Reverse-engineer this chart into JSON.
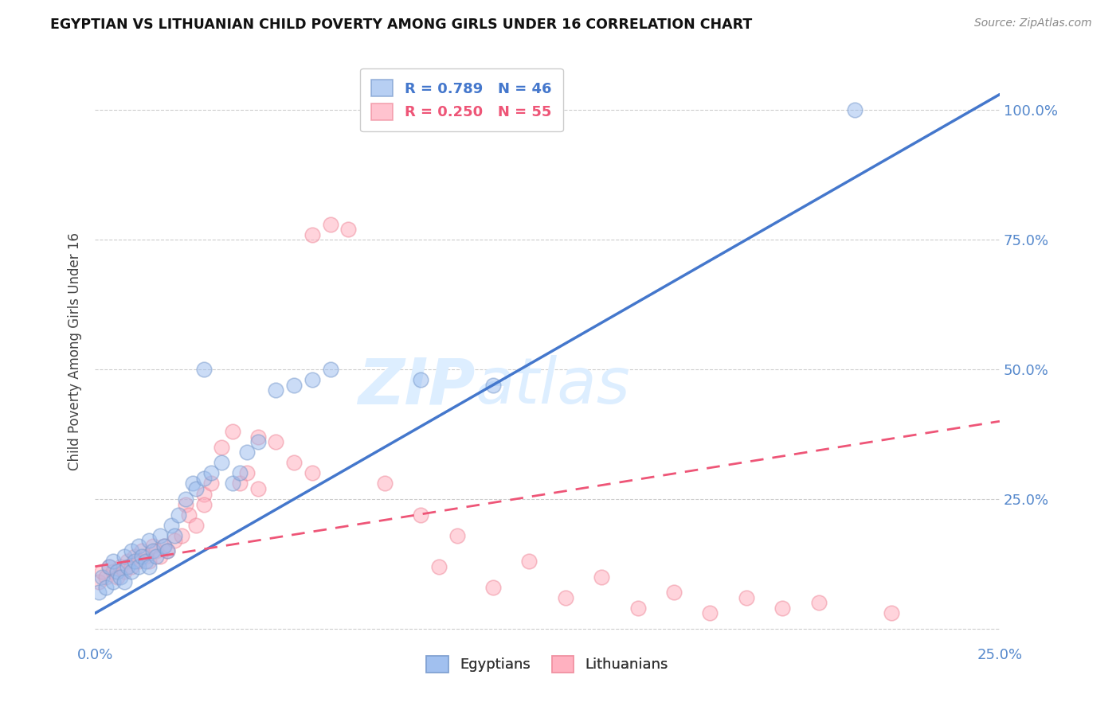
{
  "title": "EGYPTIAN VS LITHUANIAN CHILD POVERTY AMONG GIRLS UNDER 16 CORRELATION CHART",
  "source": "Source: ZipAtlas.com",
  "ylabel": "Child Poverty Among Girls Under 16",
  "xlim": [
    0.0,
    0.25
  ],
  "ylim": [
    -0.03,
    1.1
  ],
  "blue_R": 0.789,
  "blue_N": 46,
  "pink_R": 0.25,
  "pink_N": 55,
  "blue_color": "#99BBEE",
  "pink_color": "#FFAABB",
  "blue_edge_color": "#7799CC",
  "pink_edge_color": "#EE8899",
  "blue_line_color": "#4477CC",
  "pink_line_color": "#EE5577",
  "tick_color": "#5588CC",
  "grid_color": "#CCCCCC",
  "bg_color": "#FFFFFF",
  "watermark_color": "#DDEEFF",
  "blue_scatter_x": [
    0.001,
    0.002,
    0.003,
    0.004,
    0.005,
    0.005,
    0.006,
    0.007,
    0.008,
    0.008,
    0.009,
    0.01,
    0.01,
    0.011,
    0.012,
    0.012,
    0.013,
    0.014,
    0.015,
    0.015,
    0.016,
    0.017,
    0.018,
    0.019,
    0.02,
    0.021,
    0.022,
    0.023,
    0.025,
    0.027,
    0.028,
    0.03,
    0.032,
    0.035,
    0.038,
    0.04,
    0.042,
    0.045,
    0.05,
    0.055,
    0.06,
    0.065,
    0.09,
    0.11,
    0.03,
    0.21
  ],
  "blue_scatter_y": [
    0.07,
    0.1,
    0.08,
    0.12,
    0.09,
    0.13,
    0.11,
    0.1,
    0.09,
    0.14,
    0.12,
    0.11,
    0.15,
    0.13,
    0.12,
    0.16,
    0.14,
    0.13,
    0.12,
    0.17,
    0.15,
    0.14,
    0.18,
    0.16,
    0.15,
    0.2,
    0.18,
    0.22,
    0.25,
    0.28,
    0.27,
    0.29,
    0.3,
    0.32,
    0.28,
    0.3,
    0.34,
    0.36,
    0.46,
    0.47,
    0.48,
    0.5,
    0.48,
    0.47,
    0.5,
    1.0
  ],
  "pink_scatter_x": [
    0.001,
    0.002,
    0.003,
    0.004,
    0.005,
    0.006,
    0.007,
    0.008,
    0.009,
    0.01,
    0.011,
    0.012,
    0.013,
    0.014,
    0.015,
    0.016,
    0.017,
    0.018,
    0.019,
    0.02,
    0.022,
    0.024,
    0.025,
    0.026,
    0.028,
    0.03,
    0.032,
    0.035,
    0.038,
    0.04,
    0.042,
    0.045,
    0.05,
    0.055,
    0.06,
    0.065,
    0.07,
    0.08,
    0.09,
    0.1,
    0.12,
    0.14,
    0.16,
    0.18,
    0.2,
    0.22,
    0.03,
    0.045,
    0.06,
    0.095,
    0.11,
    0.13,
    0.15,
    0.17,
    0.19
  ],
  "pink_scatter_y": [
    0.09,
    0.11,
    0.1,
    0.12,
    0.11,
    0.1,
    0.12,
    0.11,
    0.13,
    0.12,
    0.14,
    0.13,
    0.15,
    0.14,
    0.13,
    0.16,
    0.15,
    0.14,
    0.16,
    0.15,
    0.17,
    0.18,
    0.24,
    0.22,
    0.2,
    0.26,
    0.28,
    0.35,
    0.38,
    0.28,
    0.3,
    0.37,
    0.36,
    0.32,
    0.76,
    0.78,
    0.77,
    0.28,
    0.22,
    0.18,
    0.13,
    0.1,
    0.07,
    0.06,
    0.05,
    0.03,
    0.24,
    0.27,
    0.3,
    0.12,
    0.08,
    0.06,
    0.04,
    0.03,
    0.04
  ],
  "blue_trend_x": [
    0.0,
    0.25
  ],
  "blue_trend_y": [
    0.03,
    1.03
  ],
  "pink_trend_x": [
    0.0,
    0.25
  ],
  "pink_trend_y": [
    0.12,
    0.4
  ]
}
